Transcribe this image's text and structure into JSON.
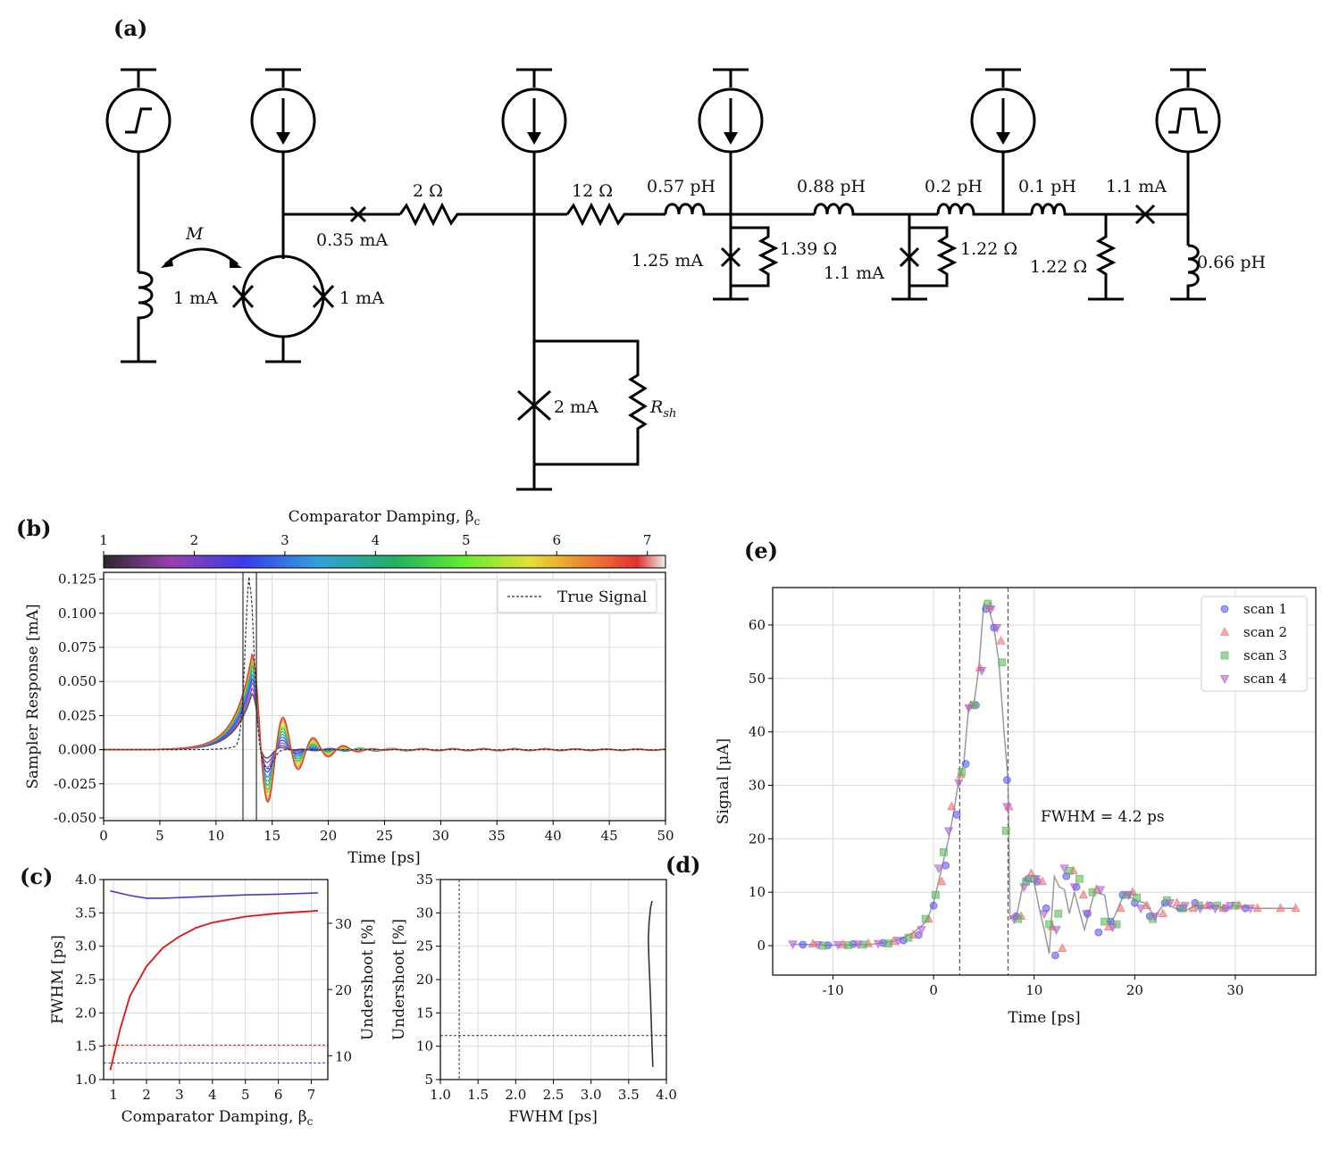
{
  "panels": {
    "a": "(a)",
    "b": "(b)",
    "c": "(c)",
    "d": "(d)",
    "e": "(e)"
  },
  "circuit": {
    "mutual": "M",
    "rsh_main": "R",
    "rsh_sub": "sh",
    "labels": {
      "j_035": "0.35 mA",
      "r_2": "2 Ω",
      "r_12": "12 Ω",
      "l_057": "0.57 pH",
      "l_088": "0.88 pH",
      "l_02": "0.2 pH",
      "l_01": "0.1 pH",
      "j_11_top": "1.1 mA",
      "r_139": "1.39 Ω",
      "j_125": "1.25 mA",
      "r_122a": "1.22 Ω",
      "j_11": "1.1 mA",
      "r_122b": "1.22 Ω",
      "l_066": "0.66 pH",
      "j_1_left": "1 mA",
      "j_1_right": "1 mA",
      "j_2": "2 mA"
    }
  },
  "colors": {
    "fwhm": "#3b3bdd",
    "undershoot": "#e81010",
    "scan1": "#5a5af0",
    "scan2": "#f07070",
    "scan3": "#5fb85f",
    "scan4": "#b060d0"
  },
  "chart_data": [
    {
      "id": "b",
      "type": "line",
      "xlabel": "Time [ps]",
      "ylabel": "Sampler Response [mA]",
      "xlim": [
        0,
        50
      ],
      "ylim": [
        -0.052,
        0.13
      ],
      "xticks": [
        0,
        5,
        10,
        15,
        20,
        25,
        30,
        35,
        40,
        45,
        50
      ],
      "yticks": [
        -0.05,
        -0.025,
        0.0,
        0.025,
        0.05,
        0.075,
        0.1,
        0.125
      ],
      "ytick_labels": [
        "-0.050",
        "-0.025",
        "0.000",
        "0.025",
        "0.050",
        "0.075",
        "0.100",
        "0.125"
      ],
      "legend": "True Signal",
      "legend_position": "top-right",
      "colorbar": {
        "label": "Comparator Damping, β",
        "label_sub": "c",
        "ticks": [
          1,
          2,
          3,
          4,
          5,
          6,
          7
        ],
        "range": [
          1,
          7.2
        ]
      },
      "vlines": [
        12.4,
        13.6
      ],
      "true_signal": {
        "center": 13.0,
        "peak": 0.12,
        "width": 0.55,
        "dip": -0.014,
        "dip_at": 14.6
      },
      "series_betas": [
        1.0,
        1.5,
        2.0,
        2.5,
        3.0,
        3.5,
        4.0,
        4.5,
        5.0,
        5.5,
        6.0,
        6.5,
        7.0
      ],
      "series_peaks": [
        0.041,
        0.045,
        0.049,
        0.052,
        0.055,
        0.058,
        0.061,
        0.063,
        0.065,
        0.067,
        0.068,
        0.069,
        0.07
      ],
      "first_dip": [
        -0.01,
        -0.014,
        -0.018,
        -0.022,
        -0.026,
        -0.029,
        -0.032,
        -0.035,
        -0.037,
        -0.039,
        -0.041,
        -0.042,
        -0.043
      ]
    },
    {
      "id": "c",
      "type": "line",
      "xlabel": "Comparator Damping, β",
      "xlabel_sub": "c",
      "ylabel_left": "FWHM [ps]",
      "ylabel_right": "Undershoot [%]",
      "xlim": [
        0.7,
        7.5
      ],
      "ylim_left": [
        1.0,
        4.0
      ],
      "ylim_right": [
        6.4,
        36.6
      ],
      "xticks": [
        1,
        2,
        3,
        4,
        5,
        6,
        7
      ],
      "yticks_left": [
        "1.0",
        "1.5",
        "2.0",
        "2.5",
        "3.0",
        "3.5",
        "4.0"
      ],
      "yticks_right": [
        10,
        20,
        30
      ],
      "fwhm": {
        "x": [
          0.9,
          1.5,
          2.0,
          2.5,
          3.0,
          4.0,
          5.0,
          6.0,
          7.2
        ],
        "y": [
          3.83,
          3.76,
          3.72,
          3.72,
          3.73,
          3.75,
          3.77,
          3.78,
          3.8
        ]
      },
      "undershoot": {
        "x": [
          0.9,
          1.2,
          1.5,
          2.0,
          2.5,
          3.0,
          3.5,
          4.0,
          5.0,
          6.0,
          7.2
        ],
        "y": [
          7.8,
          14.0,
          19.0,
          23.5,
          26.3,
          28.0,
          29.3,
          30.1,
          31.0,
          31.5,
          31.9
        ]
      },
      "fwhm_ref": 1.25,
      "undershoot_ref": 11.6
    },
    {
      "id": "d",
      "type": "line",
      "xlabel": "FWHM [ps]",
      "ylabel": "Undershoot [%]",
      "xlim": [
        1.0,
        4.0
      ],
      "ylim": [
        5,
        35
      ],
      "xticks": [
        "1.0",
        "1.5",
        "2.0",
        "2.5",
        "3.0",
        "3.5",
        "4.0"
      ],
      "yticks": [
        5,
        10,
        15,
        20,
        25,
        30,
        35
      ],
      "curve": {
        "x": [
          3.82,
          3.81,
          3.8,
          3.79,
          3.78,
          3.77,
          3.76,
          3.77,
          3.79,
          3.81
        ],
        "y": [
          6.9,
          10.0,
          13.5,
          17.0,
          20.0,
          22.5,
          26.0,
          28.5,
          30.8,
          31.8
        ]
      },
      "vline": 1.25,
      "hline": 11.6
    },
    {
      "id": "e",
      "type": "scatter",
      "xlabel": "Time [ps]",
      "ylabel": "Signal [μA]",
      "xlim": [
        -16,
        38
      ],
      "ylim": [
        -5.5,
        67
      ],
      "xticks": [
        -10,
        0,
        10,
        20,
        30
      ],
      "yticks": [
        0,
        10,
        20,
        30,
        40,
        50,
        60
      ],
      "annotation": "FWHM = 4.2 ps",
      "vlines": [
        2.6,
        7.4
      ],
      "legend_position": "top-right",
      "trace": {
        "x": [
          -14,
          -12,
          -10,
          -8,
          -6,
          -4,
          -3,
          -2,
          -1,
          -0.5,
          0,
          0.5,
          1,
          1.5,
          2,
          2.5,
          3,
          3.5,
          4,
          4.5,
          5,
          5.5,
          6,
          6.5,
          7,
          7.4,
          7.6,
          8,
          8.3,
          9,
          9.5,
          10,
          10.5,
          11,
          11.5,
          12,
          12.5,
          13,
          13.5,
          14,
          15,
          16,
          17,
          17.5,
          18,
          19,
          20,
          21,
          22,
          23,
          24,
          25,
          26,
          27,
          28,
          29,
          30,
          32,
          34,
          36
        ],
        "y": [
          0.3,
          0.2,
          0.1,
          0.2,
          0.3,
          0.8,
          1.5,
          2.5,
          4.0,
          5.5,
          8.0,
          12.0,
          16.0,
          20.0,
          25.0,
          31.0,
          34.0,
          45.0,
          45.0,
          52.0,
          64.0,
          63.0,
          59.5,
          53.0,
          40.0,
          31.0,
          5.0,
          5.5,
          6.0,
          12.5,
          12.0,
          12.0,
          7.0,
          3.0,
          -1.5,
          13.0,
          11.0,
          10.5,
          6.0,
          10.0,
          3.0,
          10.0,
          9.5,
          4.0,
          5.5,
          10.0,
          8.5,
          8.0,
          5.5,
          8.0,
          7.0,
          6.5,
          7.5,
          7.0,
          7.5,
          7.0,
          7.5,
          7.0,
          7.0,
          7.0
        ]
      },
      "series": [
        {
          "name": "scan 1",
          "marker": "circle",
          "x": [
            -13,
            -10.5,
            -8,
            -5,
            -3,
            -1.5,
            0,
            1.2,
            2.3,
            3.2,
            4.2,
            5.2,
            6,
            7.3,
            8.2,
            9.4,
            10.3,
            11.2,
            12.1,
            13.2,
            14.2,
            15.3,
            16.4,
            17.6,
            18.8,
            20,
            21.5,
            23,
            24.5,
            26,
            27.5,
            29,
            31
          ],
          "y": [
            0.2,
            0.1,
            0.3,
            0.5,
            1.0,
            2.0,
            7.5,
            15.0,
            24.5,
            34.0,
            45.0,
            63.0,
            59.5,
            31.0,
            5.5,
            12.5,
            12.0,
            7.0,
            -1.8,
            13.0,
            11.0,
            6.0,
            2.5,
            4.5,
            9.5,
            8.0,
            5.5,
            8.0,
            7.0,
            8.0,
            7.5,
            7.0,
            7.0
          ]
        },
        {
          "name": "scan 2",
          "marker": "triangle-up",
          "x": [
            -12,
            -9,
            -6.5,
            -4,
            -2,
            -0.5,
            0.8,
            1.8,
            2.7,
            3.7,
            4.6,
            5.6,
            6.7,
            7.5,
            8.7,
            9.7,
            10.8,
            11.8,
            12.8,
            13.9,
            14.9,
            16.2,
            17.4,
            18.6,
            19.8,
            21.2,
            22.8,
            24.2,
            25.8,
            27.2,
            28.8,
            30.4,
            32.2,
            34.5,
            36
          ],
          "y": [
            0.3,
            0.2,
            0.4,
            0.8,
            2.0,
            5.0,
            12.0,
            26.0,
            32.0,
            45.0,
            52.0,
            63.5,
            57.0,
            26.0,
            5.5,
            13.5,
            12.0,
            3.5,
            -0.5,
            14.0,
            9.5,
            10.5,
            3.5,
            7.0,
            10.0,
            7.5,
            6.0,
            8.0,
            7.0,
            7.5,
            7.0,
            7.5,
            7.0,
            7.0,
            7.0
          ]
        },
        {
          "name": "scan 3",
          "marker": "square",
          "x": [
            -11,
            -8.5,
            -7,
            -4.5,
            -2.5,
            -0.8,
            0.2,
            1.0,
            2.8,
            4.0,
            5.4,
            6.8,
            7.2,
            8.4,
            9.2,
            10.0,
            11.5,
            12.4,
            13.5,
            14.5,
            15.8,
            17.0,
            18.2,
            19.2,
            20.2,
            21.8,
            23.2,
            24.8,
            26.4,
            28.2,
            30.0
          ],
          "y": [
            0.0,
            0.1,
            0.2,
            0.4,
            1.5,
            5.0,
            9.5,
            17.5,
            32.5,
            45.0,
            64.0,
            53.0,
            21.5,
            5.0,
            12.0,
            12.5,
            4.0,
            6.0,
            14.0,
            12.5,
            10.0,
            4.5,
            4.0,
            9.5,
            9.0,
            5.0,
            8.5,
            7.0,
            7.5,
            7.5,
            7.5
          ]
        },
        {
          "name": "scan 4",
          "marker": "triangle-down",
          "x": [
            -14,
            -11.5,
            -9.5,
            -7.5,
            -5.5,
            -3.5,
            -1.2,
            0.5,
            1.5,
            2.5,
            3.5,
            4.8,
            5.7,
            6.3,
            7.3,
            8.0,
            9.0,
            10.2,
            11.0,
            12.2,
            13.0,
            14.0,
            15.2,
            16.6,
            17.8,
            19.4,
            20.6,
            22.0,
            23.5,
            25.0,
            26.5,
            28.0,
            29.5,
            31.5
          ],
          "y": [
            0.3,
            0.2,
            0.2,
            0.3,
            0.4,
            1.0,
            3.0,
            14.5,
            21.5,
            30.5,
            44.5,
            51.5,
            63.0,
            59.5,
            26.0,
            5.0,
            11.0,
            12.5,
            6.0,
            3.0,
            14.5,
            11.0,
            6.0,
            10.5,
            3.5,
            9.5,
            7.0,
            5.5,
            8.0,
            7.5,
            7.0,
            7.0,
            7.5,
            7.0
          ]
        }
      ]
    }
  ]
}
